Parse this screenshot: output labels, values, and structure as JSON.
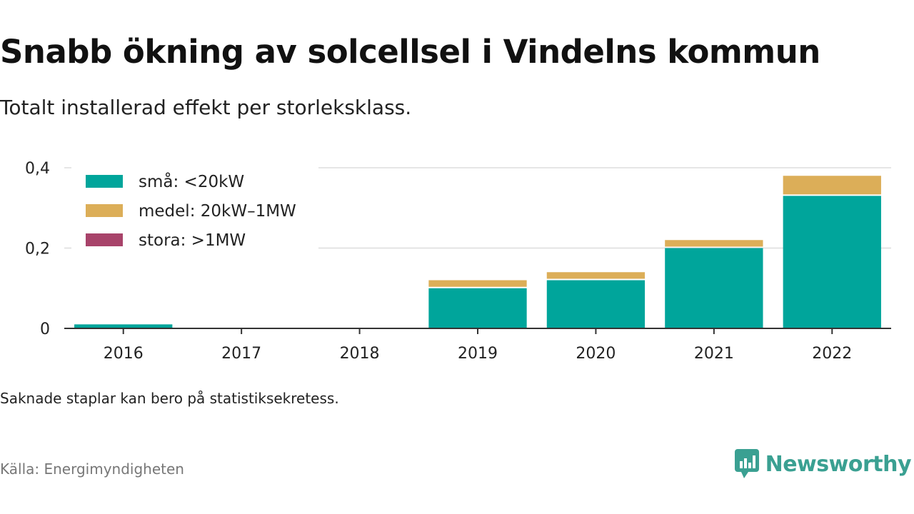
{
  "header": {
    "title": "Snabb ökning av solcellsel i Vindelns kommun",
    "subtitle": "Totalt installerad effekt per storleksklass."
  },
  "footer": {
    "note": "Saknade staplar kan bero på statistiksekretess.",
    "source": "Källa: Energimyndigheten",
    "brand": "Newsworthy"
  },
  "colors": {
    "small": "#00a59b",
    "medium": "#dcae58",
    "large": "#a8436a",
    "grid": "#dddddd",
    "axis": "#333333",
    "brand": "#3aa092"
  },
  "chart_data": {
    "type": "bar",
    "stacked": true,
    "categories": [
      "2016",
      "2017",
      "2018",
      "2019",
      "2020",
      "2021",
      "2022"
    ],
    "series": [
      {
        "name": "små: <20kW",
        "values": [
          0.01,
          0,
          0,
          0.1,
          0.12,
          0.2,
          0.33
        ]
      },
      {
        "name": "medel: 20kW–1MW",
        "values": [
          0,
          0,
          0,
          0.02,
          0.02,
          0.02,
          0.05
        ]
      },
      {
        "name": "stora: >1MW",
        "values": [
          0,
          0,
          0,
          0,
          0,
          0,
          0
        ]
      }
    ],
    "ylim": [
      0,
      0.4
    ],
    "yticks": [
      0,
      0.2,
      0.4
    ],
    "ytick_labels": [
      "0",
      "0,2",
      "0,4"
    ],
    "grid": true,
    "legend": "top-left"
  }
}
